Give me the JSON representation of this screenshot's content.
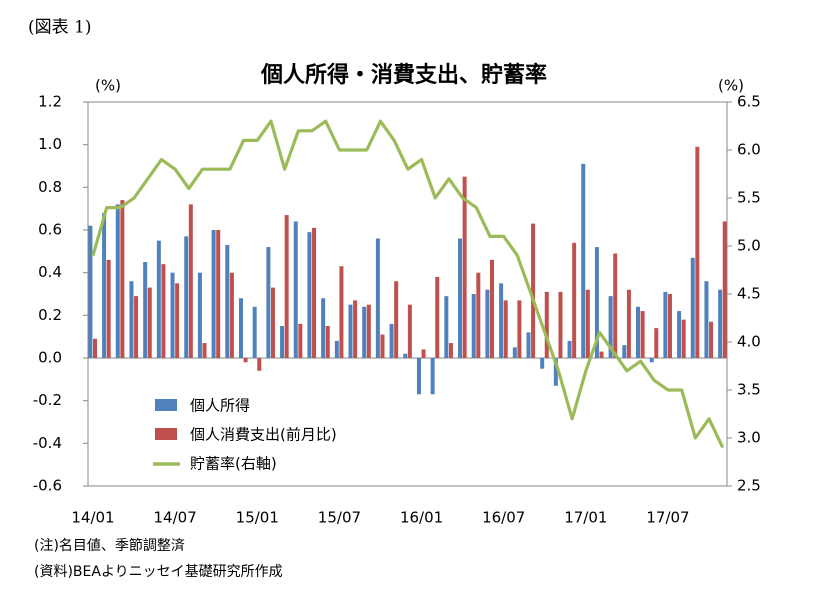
{
  "header": "(図表 1)",
  "chart_data": {
    "type": "bar_line",
    "title": "個人所得・消費支出、貯蓄率",
    "y_label": "(%)",
    "y2_label": "(%)",
    "categories": [
      "14/01",
      null,
      null,
      null,
      null,
      null,
      "14/07",
      null,
      null,
      null,
      null,
      null,
      "15/01",
      null,
      null,
      null,
      null,
      null,
      "15/07",
      null,
      null,
      null,
      null,
      null,
      "16/01",
      null,
      null,
      null,
      null,
      null,
      "16/07",
      null,
      null,
      null,
      null,
      null,
      "17/01",
      null,
      null,
      null,
      null,
      null,
      "17/07",
      null,
      null,
      null,
      null
    ],
    "series": [
      {
        "name": "個人所得",
        "color": "#4f81bd",
        "type": "bar",
        "values": [
          0.62,
          0.68,
          0.72,
          0.36,
          0.45,
          0.55,
          0.4,
          0.57,
          0.4,
          0.6,
          0.53,
          0.28,
          0.24,
          0.52,
          0.15,
          0.64,
          0.59,
          0.28,
          0.08,
          0.25,
          0.24,
          0.56,
          0.16,
          0.02,
          -0.17,
          -0.17,
          0.29,
          0.56,
          0.3,
          0.32,
          0.35,
          0.05,
          0.12,
          -0.05,
          -0.13,
          0.08,
          0.91,
          0.52,
          0.29,
          0.06,
          0.24,
          -0.02,
          0.31,
          0.22,
          0.47,
          0.36,
          0.32
        ]
      },
      {
        "name": "個人消費支出(前月比)",
        "color": "#c0504d",
        "type": "bar",
        "values": [
          0.09,
          0.46,
          0.74,
          0.29,
          0.33,
          0.44,
          0.35,
          0.72,
          0.07,
          0.6,
          0.4,
          -0.02,
          -0.06,
          0.33,
          0.67,
          0.16,
          0.61,
          0.15,
          0.43,
          0.27,
          0.25,
          0.11,
          0.36,
          0.25,
          0.04,
          0.38,
          0.07,
          0.85,
          0.4,
          0.46,
          0.27,
          0.27,
          0.63,
          0.31,
          0.31,
          0.54,
          0.32,
          0.03,
          0.49,
          0.32,
          0.22,
          0.14,
          0.3,
          0.18,
          0.99,
          0.17,
          0.64
        ]
      },
      {
        "name": "貯蓄率(右軸)",
        "color": "#9bbb59",
        "type": "line",
        "axis": "y2",
        "values": [
          4.9,
          5.4,
          5.4,
          5.5,
          5.7,
          5.9,
          5.8,
          5.6,
          5.8,
          5.8,
          5.8,
          6.1,
          6.1,
          6.3,
          5.8,
          6.2,
          6.2,
          6.3,
          6.0,
          6.0,
          6.0,
          6.3,
          6.1,
          5.8,
          5.9,
          5.5,
          5.7,
          5.5,
          5.4,
          5.1,
          5.1,
          4.9,
          4.5,
          4.1,
          3.7,
          3.2,
          3.7,
          4.1,
          3.9,
          3.7,
          3.8,
          3.6,
          3.5,
          3.5,
          3.0,
          3.2,
          2.9
        ]
      }
    ],
    "ylim": [
      -0.6,
      1.2
    ],
    "yticks": [
      -0.6,
      -0.4,
      -0.2,
      {
        "value": 0,
        "label": "0.0"
      },
      0.2,
      0.4,
      0.6,
      0.8,
      {
        "value": 1,
        "label": "1.0"
      },
      1.2
    ],
    "y2lim": [
      2.5,
      6.5
    ],
    "y2ticks": [
      2.5,
      {
        "value": 3,
        "label": "3.0"
      },
      3.5,
      {
        "value": 4,
        "label": "4.0"
      },
      4.5,
      {
        "value": 5,
        "label": "5.0"
      },
      5.5,
      {
        "value": 6,
        "label": "6.0"
      },
      6.5
    ]
  },
  "notes": [
    "(注)名目値、季節調整済",
    "(資料)BEAよりニッセイ基礎研究所作成"
  ]
}
